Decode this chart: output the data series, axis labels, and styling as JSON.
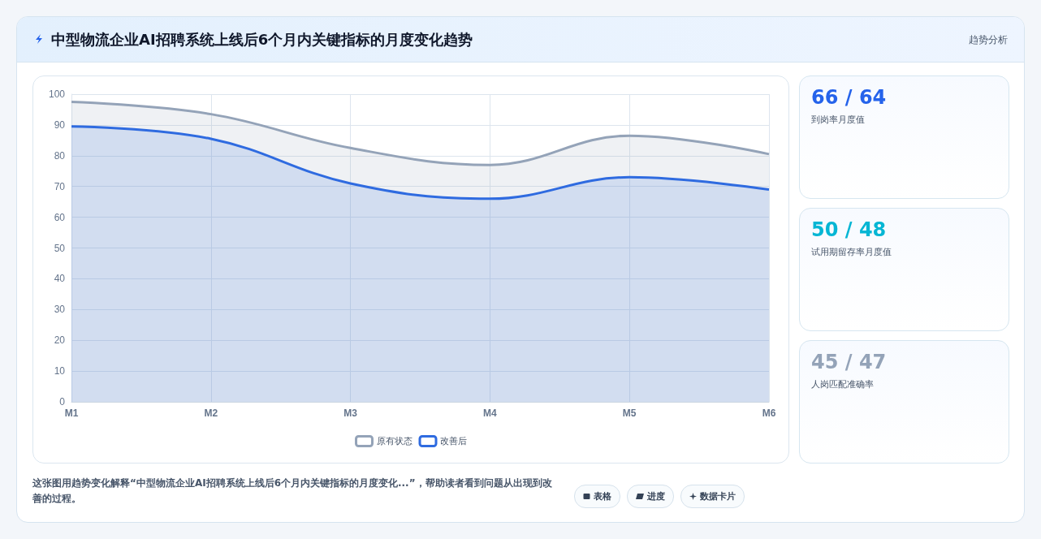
{
  "chart_data": [
    {
      "type": "area",
      "title": "中型物流企业AI招聘系统上线后6个月内关键指标的月度变化趋势",
      "categories": [
        "M1",
        "M2",
        "M3",
        "M4",
        "M5",
        "M6"
      ],
      "series": [
        {
          "name": "原有状态",
          "color": "#94a3b8",
          "values": [
            97.5,
            93.5,
            82.5,
            77,
            86.5,
            80.5
          ]
        },
        {
          "name": "改善后",
          "color": "#2f6be0",
          "values": [
            89.5,
            85.5,
            71,
            66,
            73,
            69
          ]
        }
      ],
      "ylim": [
        0,
        100
      ],
      "yticks": [
        0,
        10,
        20,
        30,
        40,
        50,
        60,
        70,
        80,
        90,
        100
      ],
      "grid": true,
      "legend": "bottom",
      "marker": "none",
      "annotations": [
        "趋势分析",
        "这张图用趋势变化解释“中型物流企业AI招聘系统上线后6个月内关键指标的月度变化...”，帮助读者看到问题从出现到改善的过程。",
        "表格",
        "进度",
        "数据卡片"
      ]
    },
    {
      "type": "other",
      "title": "66 / 64",
      "subtitle": "到岗率月度值",
      "color": "#2563eb"
    },
    {
      "type": "other",
      "title": "50 / 48",
      "subtitle": "试用期留存率月度值",
      "color": "#06b6d4"
    },
    {
      "type": "other",
      "title": "45 / 47",
      "subtitle": "人岗匹配准确率",
      "color": "#94a3b8"
    }
  ]
}
